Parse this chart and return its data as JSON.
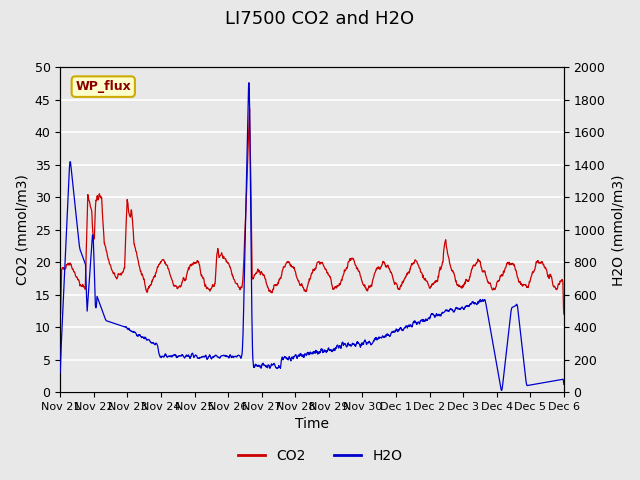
{
  "title": "LI7500 CO2 and H2O",
  "xlabel": "Time",
  "ylabel_left": "CO2 (mmol/m3)",
  "ylabel_right": "H2O (mmol/m3)",
  "ylim_left": [
    0,
    50
  ],
  "ylim_right": [
    0,
    2000
  ],
  "yticks_left": [
    0,
    5,
    10,
    15,
    20,
    25,
    30,
    35,
    40,
    45,
    50
  ],
  "yticks_right": [
    0,
    200,
    400,
    600,
    800,
    1000,
    1200,
    1400,
    1600,
    1800,
    2000
  ],
  "xtick_labels": [
    "Nov 21",
    "Nov 22",
    "Nov 23",
    "Nov 24",
    "Nov 25",
    "Nov 26",
    "Nov 27",
    "Nov 28",
    "Nov 29",
    "Nov 30",
    "Dec 1",
    "Dec 2",
    "Dec 3",
    "Dec 4",
    "Dec 5",
    "Dec 6"
  ],
  "co2_color": "#cc0000",
  "h2o_color": "#0000cc",
  "bg_color": "#e8e8e8",
  "plot_bg_color": "#e8e8e8",
  "grid_color": "#ffffff",
  "annotation_text": "WP_flux",
  "annotation_bg": "#ffffcc",
  "annotation_border": "#ccaa00",
  "title_fontsize": 13,
  "axis_label_fontsize": 10,
  "tick_fontsize": 9,
  "legend_fontsize": 10
}
